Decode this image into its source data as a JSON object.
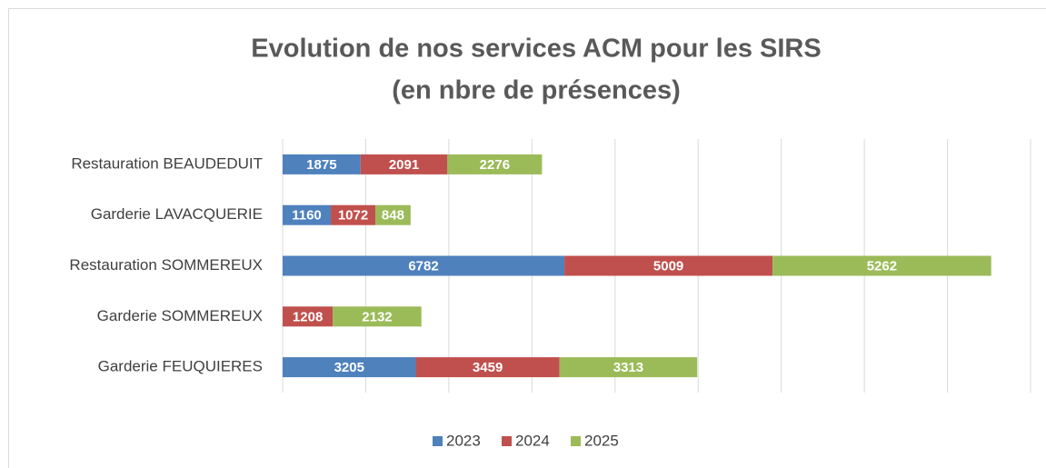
{
  "chart_data": {
    "type": "bar",
    "orientation": "horizontal",
    "stacked": true,
    "title": [
      "Evolution de nos services ACM pour les SIRS",
      "(en nbre de présences)"
    ],
    "categories": [
      "Restauration BEAUDEDUIT",
      "Garderie LAVACQUERIE",
      "Restauration SOMMEREUX",
      "Garderie SOMMEREUX",
      "Garderie FEUQUIERES"
    ],
    "series": [
      {
        "name": "2023",
        "color": "#4f81bd",
        "values": [
          1875,
          1160,
          6782,
          0,
          3205
        ]
      },
      {
        "name": "2024",
        "color": "#c0504d",
        "values": [
          2091,
          1072,
          5009,
          1208,
          3459
        ]
      },
      {
        "name": "2025",
        "color": "#9bbb59",
        "values": [
          2276,
          848,
          5262,
          2132,
          3313
        ]
      }
    ],
    "xlim": [
      0,
      18000
    ],
    "xticks": [
      0,
      2000,
      4000,
      6000,
      8000,
      10000,
      12000,
      14000,
      16000,
      18000
    ],
    "grid": true,
    "legend": "bottom"
  }
}
